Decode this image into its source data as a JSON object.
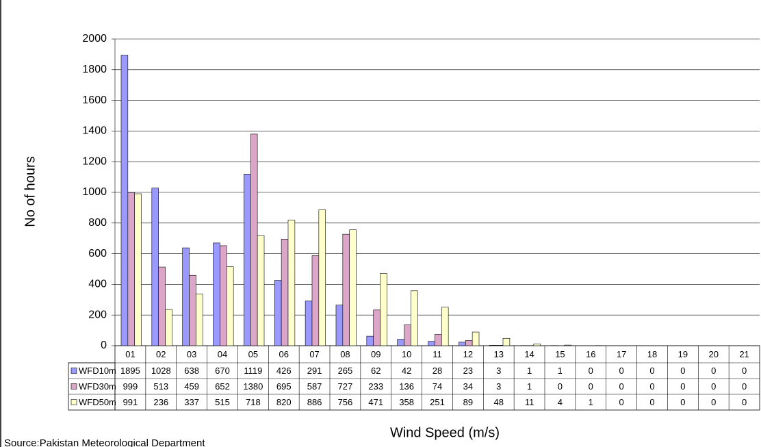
{
  "chart_data": {
    "type": "bar",
    "categories": [
      "01",
      "02",
      "03",
      "04",
      "05",
      "06",
      "07",
      "08",
      "09",
      "10",
      "11",
      "12",
      "13",
      "14",
      "15",
      "16",
      "17",
      "18",
      "19",
      "20",
      "21"
    ],
    "series": [
      {
        "name": "WFD10m",
        "color": "#9999ff",
        "values": [
          1895,
          1028,
          638,
          670,
          1119,
          426,
          291,
          265,
          62,
          42,
          28,
          23,
          3,
          1,
          1,
          0,
          0,
          0,
          0,
          0,
          0
        ]
      },
      {
        "name": "WFD30m",
        "color": "#dca6c8",
        "values": [
          999,
          513,
          459,
          652,
          1380,
          695,
          587,
          727,
          233,
          136,
          74,
          34,
          3,
          1,
          0,
          0,
          0,
          0,
          0,
          0,
          0
        ]
      },
      {
        "name": "WFD50m",
        "color": "#ffffcc",
        "values": [
          991,
          236,
          337,
          515,
          718,
          820,
          886,
          756,
          471,
          358,
          251,
          89,
          48,
          11,
          4,
          1,
          0,
          0,
          0,
          0,
          0
        ]
      }
    ],
    "ylabel": "No of hours",
    "xlabel": "Wind Speed (m/s)",
    "source": "Source:Pakistan Meteorological Department",
    "ylim": [
      0,
      2000
    ],
    "yticks": [
      0,
      200,
      400,
      600,
      800,
      1000,
      1200,
      1400,
      1600,
      1800,
      2000
    ],
    "grid": true
  }
}
